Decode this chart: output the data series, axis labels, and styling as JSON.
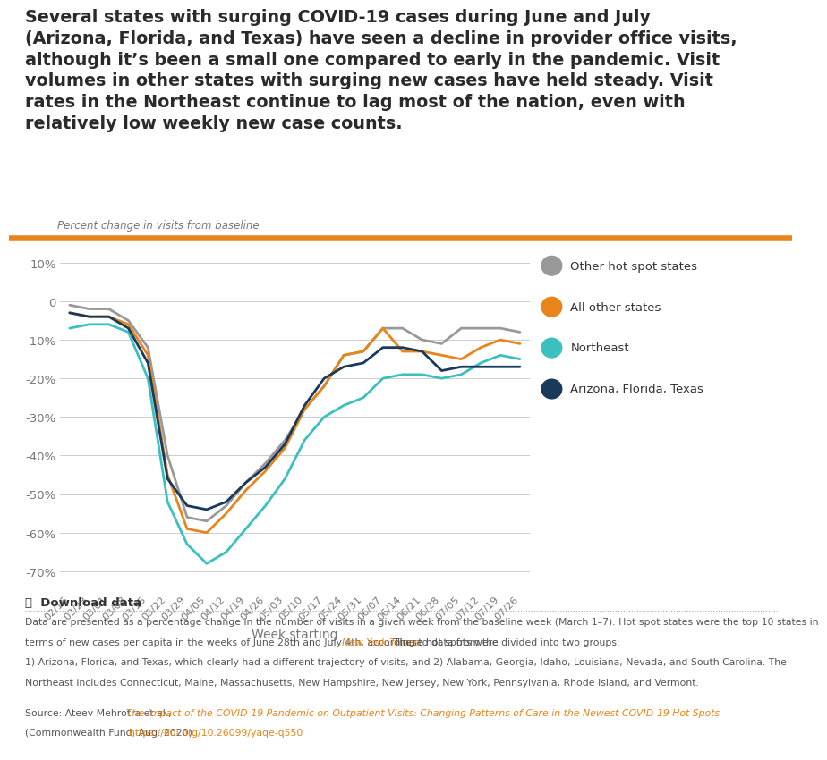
{
  "title": "Several states with surging COVID-19 cases during June and July\n(Arizona, Florida, and Texas) have seen a decline in provider office visits,\nalthough it’s been a small one compared to early in the pandemic. Visit\nvolumes in other states with surging new cases have held steady. Visit\nrates in the Northeast continue to lag most of the nation, even with\nrelatively low weekly new case counts.",
  "orange_bar_color": "#E8841A",
  "ylabel": "Percent change in visits from baseline",
  "xlabel": "Week starting",
  "x_labels": [
    "02/16",
    "02/23",
    "03/01",
    "03/08",
    "03/15",
    "03/22",
    "03/29",
    "04/05",
    "04/12",
    "04/19",
    "04/26",
    "05/03",
    "05/10",
    "05/17",
    "05/24",
    "05/31",
    "06/07",
    "06/14",
    "06/21",
    "06/28",
    "07/05",
    "07/12",
    "07/19",
    "07/26"
  ],
  "series": {
    "other_hot_spot": {
      "label": "Other hot spot states",
      "color": "#999999",
      "data": [
        -1,
        -2,
        -2,
        -5,
        -12,
        -40,
        -56,
        -57,
        -53,
        -47,
        -42,
        -36,
        -28,
        -22,
        -14,
        -13,
        -7,
        -7,
        -10,
        -11,
        -7,
        -7,
        -7,
        -8
      ]
    },
    "all_other": {
      "label": "All other states",
      "color": "#E8841A",
      "data": [
        -3,
        -4,
        -4,
        -6,
        -14,
        -45,
        -59,
        -60,
        -55,
        -49,
        -44,
        -38,
        -28,
        -22,
        -14,
        -13,
        -7,
        -13,
        -13,
        -14,
        -15,
        -12,
        -10,
        -11
      ]
    },
    "northeast": {
      "label": "Northeast",
      "color": "#3BBFBF",
      "data": [
        -7,
        -6,
        -6,
        -8,
        -20,
        -52,
        -63,
        -68,
        -65,
        -59,
        -53,
        -46,
        -36,
        -30,
        -27,
        -25,
        -20,
        -19,
        -19,
        -20,
        -19,
        -16,
        -14,
        -15
      ]
    },
    "arizona": {
      "label": "Arizona, Florida, Texas",
      "color": "#1A3A5C",
      "data": [
        -3,
        -4,
        -4,
        -7,
        -16,
        -46,
        -53,
        -54,
        -52,
        -47,
        -43,
        -37,
        -27,
        -20,
        -17,
        -16,
        -12,
        -12,
        -13,
        -18,
        -17,
        -17,
        -17,
        -17
      ]
    }
  },
  "ylim": [
    -75,
    15
  ],
  "yticks": [
    10,
    0,
    -10,
    -20,
    -30,
    -40,
    -50,
    -60,
    -70
  ],
  "ytick_labels": [
    "10%",
    "0",
    "-10%",
    "-20%",
    "-30%",
    "-40%",
    "-50%",
    "-60%",
    "-70%"
  ],
  "bg_color": "#FFFFFF",
  "grid_color": "#CCCCCC",
  "text_color": "#333333",
  "axis_label_color": "#777777",
  "link_color": "#E8841A",
  "download_text": "⤓  Download data",
  "source_text": "Source: Ateev Mehrotra et al., ",
  "source_link": "The Impact of the COVID-19 Pandemic on Outpatient Visits: Changing Patterns of Care in the Newest COVID-19 Hot Spots",
  "source_end": "(Commonwealth Fund, Aug. 2020). ",
  "source_url": "https://doi.org/10.26099/yaqe-q550",
  "footnote1": "Data are presented as a percentage change in the number of visits in a given week from the baseline week (March 1–7). Hot spot states were the top 10 states in",
  "footnote2": "terms of new cases per capita in the weeks of June 28th and July 4th, according to data from the ",
  "footnote_nyt": "New York Times",
  "footnote3": ". These hot spots were divided into two groups:",
  "footnote4": "1) Arizona, Florida, and Texas, which clearly had a different trajectory of visits, and 2) Alabama, Georgia, Idaho, Louisiana, Nevada, and South Carolina. The",
  "footnote5": "Northeast includes Connecticut, Maine, Massachusetts, New Hampshire, New Jersey, New York, Pennsylvania, Rhode Island, and Vermont."
}
